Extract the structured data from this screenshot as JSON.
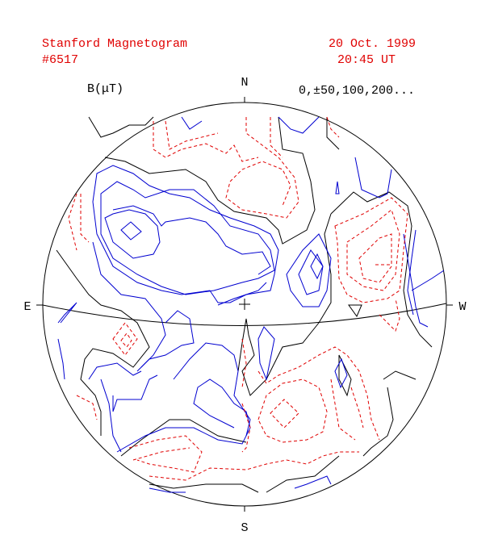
{
  "header": {
    "title": "Stanford Magnetogram",
    "number": "#6517",
    "date": "20 Oct. 1999",
    "time": "20:45 UT"
  },
  "legend": {
    "unit": "B(μT)",
    "levels": "0,±50,100,200..."
  },
  "compass": {
    "north": "N",
    "south": "S",
    "east": "E",
    "west": "W"
  }
}
